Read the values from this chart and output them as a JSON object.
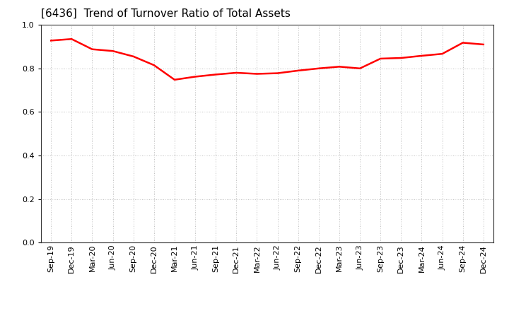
{
  "title": "[6436]  Trend of Turnover Ratio of Total Assets",
  "line_color": "#FF0000",
  "background_color": "#FFFFFF",
  "grid_color": "#999999",
  "xlabels": [
    "Sep-19",
    "Dec-19",
    "Mar-20",
    "Jun-20",
    "Sep-20",
    "Dec-20",
    "Mar-21",
    "Jun-21",
    "Sep-21",
    "Dec-21",
    "Mar-22",
    "Jun-22",
    "Sep-22",
    "Dec-22",
    "Mar-23",
    "Jun-23",
    "Sep-23",
    "Dec-23",
    "Mar-24",
    "Jun-24",
    "Sep-24",
    "Dec-24"
  ],
  "values": [
    0.928,
    0.935,
    0.888,
    0.88,
    0.855,
    0.815,
    0.748,
    0.762,
    0.772,
    0.78,
    0.775,
    0.778,
    0.79,
    0.8,
    0.808,
    0.8,
    0.845,
    0.848,
    0.858,
    0.867,
    0.918,
    0.91
  ],
  "ylim": [
    0.0,
    1.0
  ],
  "yticks": [
    0.0,
    0.2,
    0.4,
    0.6,
    0.8,
    1.0
  ],
  "title_fontsize": 11,
  "tick_fontsize": 8,
  "line_width": 1.8
}
